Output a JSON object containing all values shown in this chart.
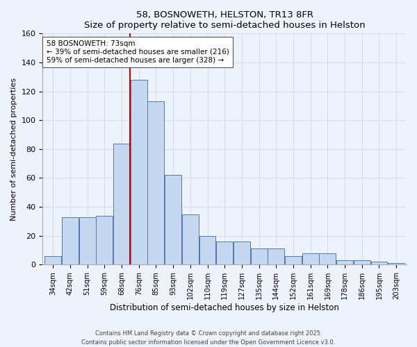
{
  "title": "58, BOSNOWETH, HELSTON, TR13 8FR",
  "subtitle": "Size of property relative to semi-detached houses in Helston",
  "xlabel": "Distribution of semi-detached houses by size in Helston",
  "ylabel": "Number of semi-detached properties",
  "categories": [
    "34sqm",
    "42sqm",
    "51sqm",
    "59sqm",
    "68sqm",
    "76sqm",
    "85sqm",
    "93sqm",
    "102sqm",
    "110sqm",
    "119sqm",
    "127sqm",
    "135sqm",
    "144sqm",
    "152sqm",
    "161sqm",
    "169sqm",
    "178sqm",
    "186sqm",
    "195sqm",
    "203sqm"
  ],
  "values": [
    6,
    33,
    33,
    34,
    84,
    128,
    113,
    62,
    35,
    20,
    16,
    16,
    11,
    11,
    6,
    8,
    8,
    3,
    3,
    2,
    1
  ],
  "bar_color": "#c5d8f0",
  "bar_edge_color": "#4a7ab5",
  "vline_x_index": 4.5,
  "vline_color": "#cc0000",
  "annotation_title": "58 BOSNOWETH: 73sqm",
  "annotation_line1": "← 39% of semi-detached houses are smaller (216)",
  "annotation_line2": "59% of semi-detached houses are larger (328) →",
  "annotation_box_color": "white",
  "annotation_box_edge": "#555555",
  "ylim": [
    0,
    160
  ],
  "yticks": [
    0,
    20,
    40,
    60,
    80,
    100,
    120,
    140,
    160
  ],
  "footer1": "Contains HM Land Registry data © Crown copyright and database right 2025.",
  "footer2": "Contains public sector information licensed under the Open Government Licence v3.0.",
  "bg_color": "#eef2fb",
  "grid_color": "#d0d8e8"
}
